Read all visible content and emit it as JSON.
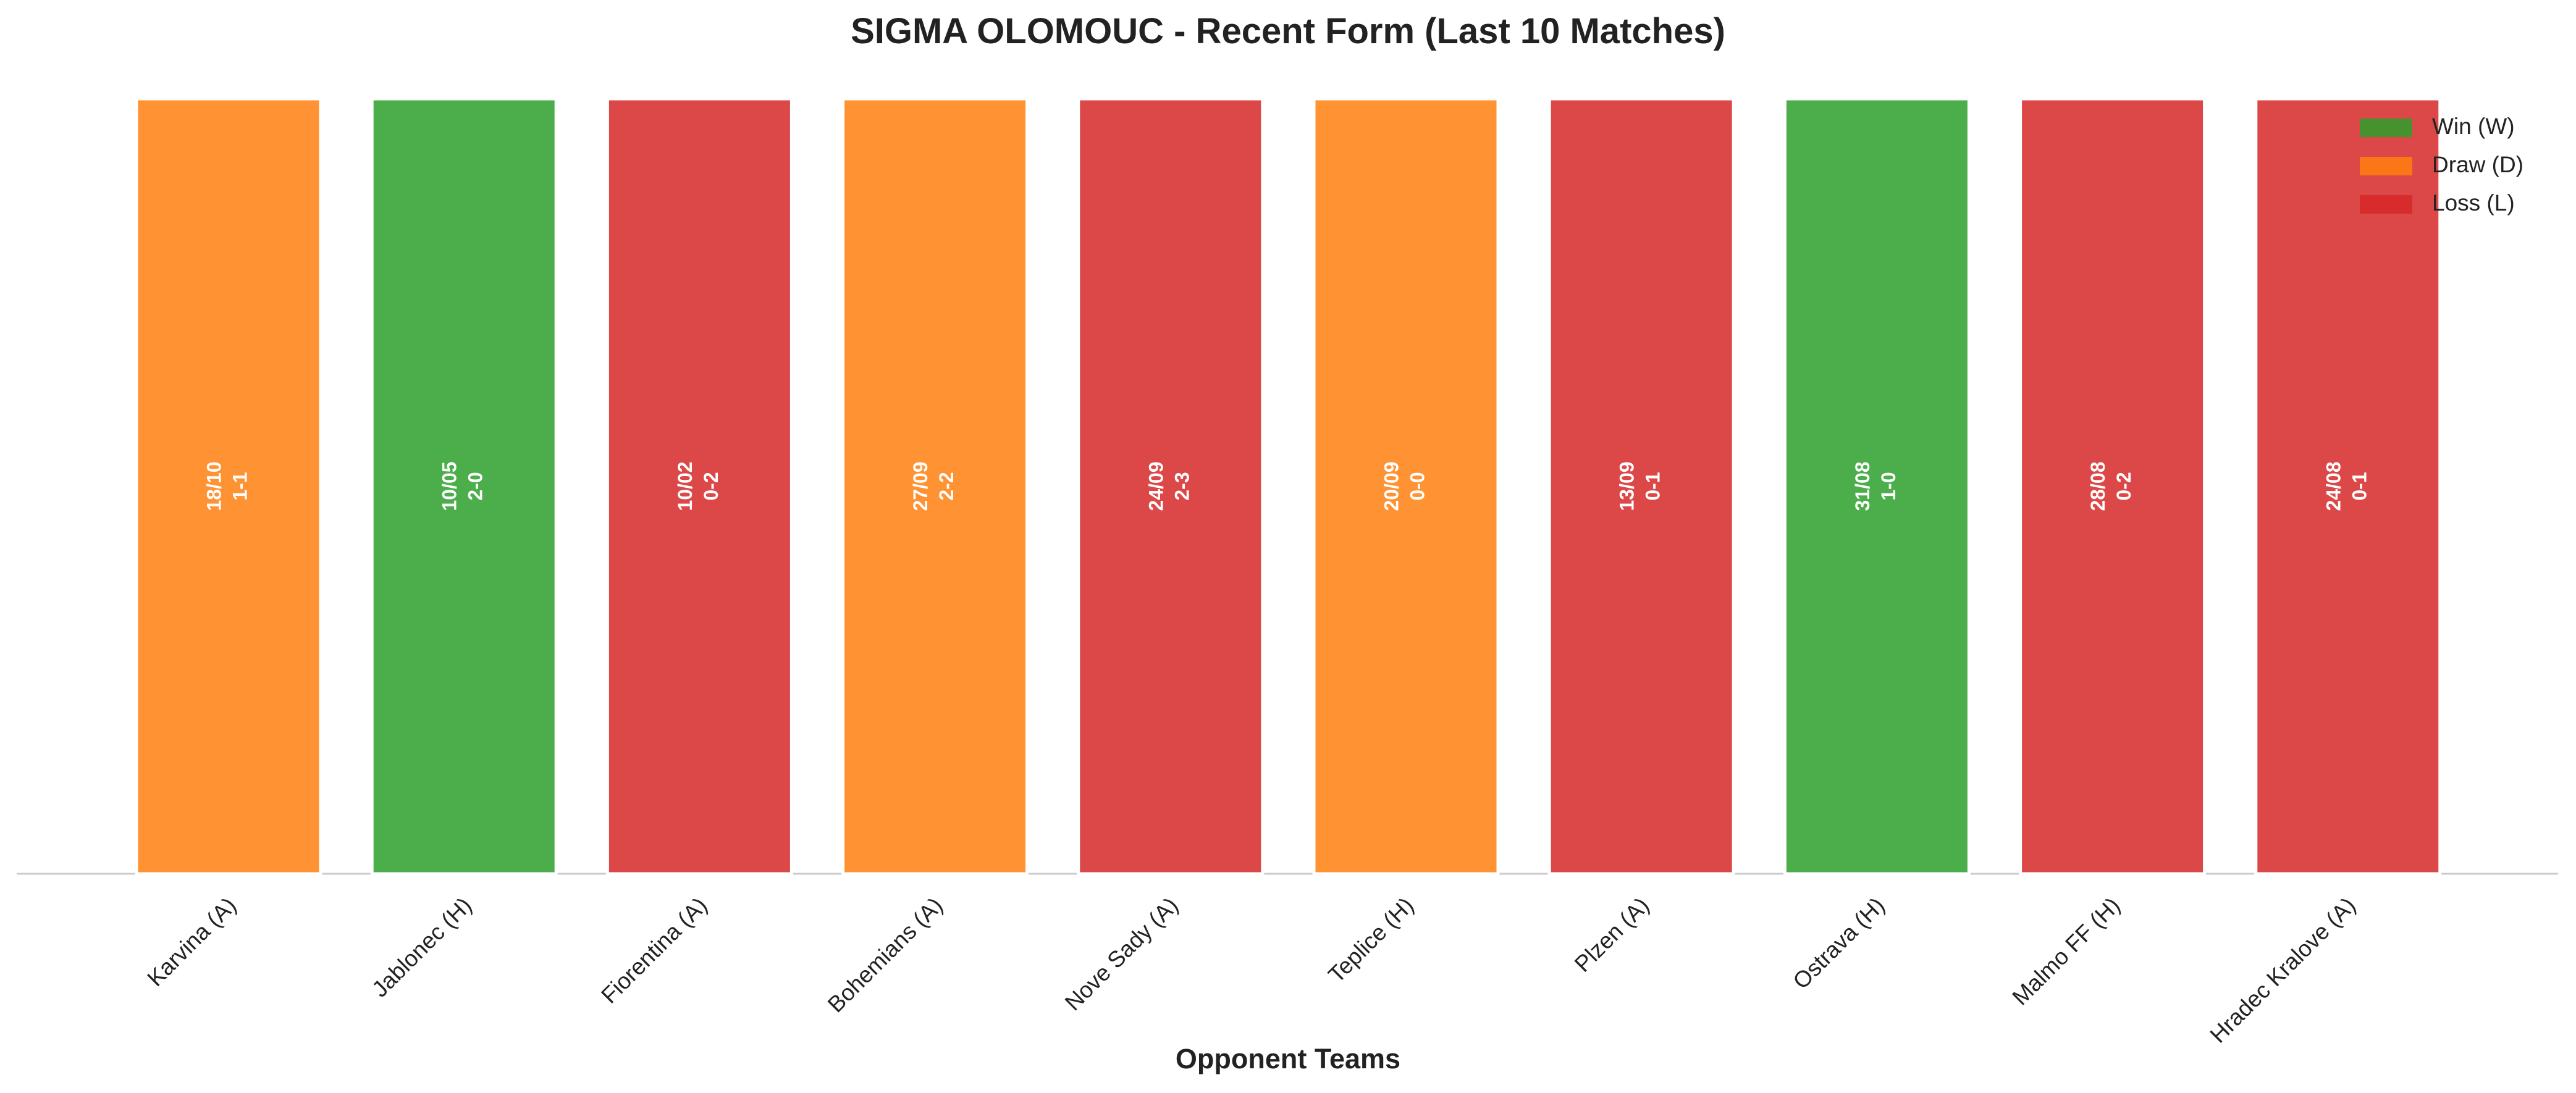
{
  "chart_data": {
    "type": "bar",
    "title": "SIGMA OLOMOUC - Recent Form (Last 10 Matches)",
    "x_label": "Opponent Teams",
    "categories": [
      "Karvina (A)",
      "Jablonec (H)",
      "Fiorentina (A)",
      "Bohemians (A)",
      "Nove Sady (A)",
      "Teplice (H)",
      "Plzen (A)",
      "Ostrava (H)",
      "Malmo FF (H)",
      "Hradec Kralove (A)"
    ],
    "values": [
      1,
      1,
      1,
      1,
      1,
      1,
      1,
      1,
      1,
      1
    ],
    "dates": [
      "18/10",
      "10/05",
      "10/02",
      "27/09",
      "24/09",
      "20/09",
      "13/09",
      "31/08",
      "28/08",
      "24/08"
    ],
    "scores": [
      "1-1",
      "2-0",
      "0-2",
      "2-2",
      "2-3",
      "0-0",
      "0-1",
      "1-0",
      "0-2",
      "0-1"
    ],
    "colors": [
      "#ff7f0e",
      "#2ca02c",
      "#d62728",
      "#ff7f0e",
      "#d62728",
      "#ff7f0e",
      "#d62728",
      "#2ca02c",
      "#d62728",
      "#d62728"
    ],
    "ylim": [
      0,
      1
    ],
    "legend_position": "upper right",
    "legend": [
      {
        "name": "Win (W)",
        "color": "#2ca02c"
      },
      {
        "name": "Draw (D)",
        "color": "#ff7f0e"
      },
      {
        "name": "Loss (L)",
        "color": "#d62728"
      }
    ]
  }
}
